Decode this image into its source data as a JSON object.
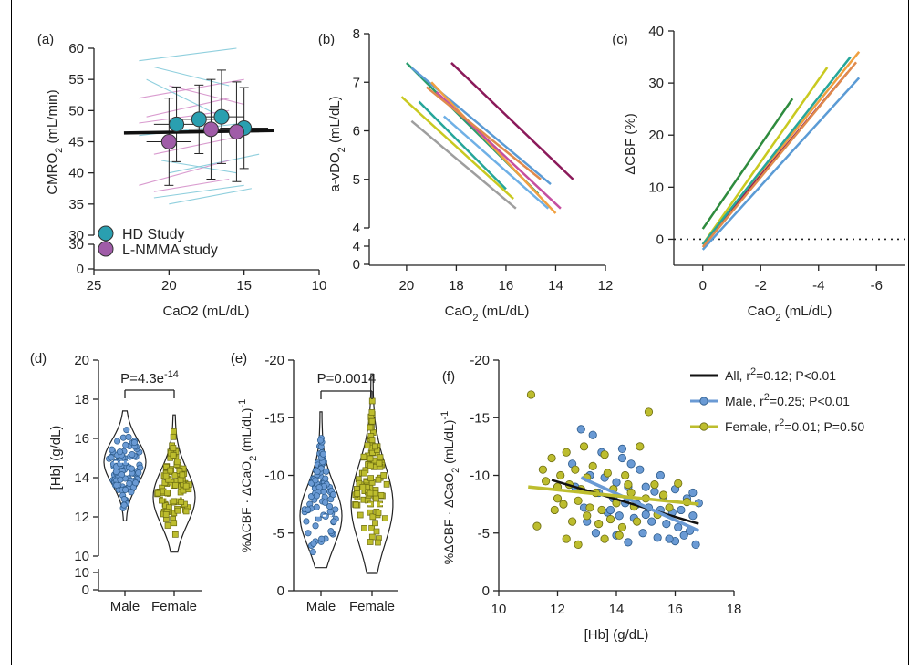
{
  "colors": {
    "hd": "#2a9fb0",
    "lnmma": "#a05ca8",
    "male": "#6a9ad4",
    "female": "#bdbd2e",
    "all": "#111111",
    "panel_b": [
      "#2a9d6e",
      "#8b1a5a",
      "#5b9bd5",
      "#f0a040",
      "#c9c920",
      "#9e9e9e",
      "#c54fa0",
      "#26a69a",
      "#6fb0e6",
      "#e08a4c"
    ],
    "panel_c": [
      "#2e8b3e",
      "#5b9bd5",
      "#f0a040",
      "#c9c920",
      "#8b1a5a",
      "#26a69a",
      "#e08a4c"
    ]
  },
  "chart_data": [
    {
      "panel": "a",
      "type": "scatter",
      "panel_label": "(a)",
      "xlabel": "CaO2 (mL/dL)",
      "ylabel": "CMRO2 (mL/min)",
      "xlim": [
        25,
        10
      ],
      "ylim": [
        0,
        60
      ],
      "axis_break": [
        30,
        30
      ],
      "xticks": [
        "25",
        "20",
        "15",
        "10"
      ],
      "yticks_upper": [
        "30",
        "35",
        "40",
        "45",
        "50",
        "55",
        "60"
      ],
      "yticks_lower": [
        "0",
        "30"
      ],
      "legend": [
        {
          "label": "HD Study",
          "color": "hd"
        },
        {
          "label": "L-NMMA study",
          "color": "lnmma"
        }
      ],
      "series": [
        {
          "name": "HD Study",
          "x": [
            19.5,
            18.0,
            16.5,
            15.0
          ],
          "y": [
            47.8,
            48.6,
            49.0,
            47.2
          ],
          "yerr": [
            6,
            5.5,
            7.5,
            6.5
          ],
          "xerr": [
            1.5,
            1.6,
            1.5,
            1.6
          ]
        },
        {
          "name": "L-NMMA study",
          "x": [
            20.0,
            17.2,
            15.5
          ],
          "y": [
            45.0,
            47.0,
            46.6
          ],
          "yerr": [
            7,
            8,
            8
          ],
          "xerr": [
            1.5,
            1.5,
            1.5
          ]
        }
      ],
      "fit": {
        "x": [
          23,
          13
        ],
        "y": [
          46.4,
          46.8
        ]
      }
    },
    {
      "panel": "b",
      "type": "line",
      "panel_label": "(b)",
      "xlabel": "CaO2 (mL/dL)",
      "ylabel": "a-vDO2 (mL/dL)",
      "xlim": [
        21.5,
        12
      ],
      "ylim": [
        0,
        8
      ],
      "axis_break": [
        4,
        4
      ],
      "xticks": [
        "20",
        "18",
        "16",
        "14",
        "12"
      ],
      "yticks_upper": [
        "4",
        "5",
        "6",
        "7",
        "8"
      ],
      "yticks_lower": [
        "0",
        "4"
      ],
      "lines": [
        {
          "x": [
            20.0,
            14.7
          ],
          "y": [
            7.4,
            4.7
          ]
        },
        {
          "x": [
            18.2,
            13.3
          ],
          "y": [
            7.4,
            5.0
          ]
        },
        {
          "x": [
            19.8,
            14.2
          ],
          "y": [
            7.3,
            4.9
          ]
        },
        {
          "x": [
            19.0,
            14.0
          ],
          "y": [
            7.0,
            4.3
          ]
        },
        {
          "x": [
            20.2,
            15.7
          ],
          "y": [
            6.7,
            4.6
          ]
        },
        {
          "x": [
            19.8,
            15.6
          ],
          "y": [
            6.2,
            4.4
          ]
        },
        {
          "x": [
            18.8,
            13.8
          ],
          "y": [
            6.8,
            4.4
          ]
        },
        {
          "x": [
            19.5,
            16.0
          ],
          "y": [
            6.6,
            4.8
          ]
        },
        {
          "x": [
            18.5,
            14.3
          ],
          "y": [
            6.3,
            4.4
          ]
        },
        {
          "x": [
            19.2,
            14.6
          ],
          "y": [
            6.9,
            5.0
          ]
        }
      ]
    },
    {
      "panel": "c",
      "type": "line",
      "panel_label": "(c)",
      "xlabel": "CaO2 (mL/dL)",
      "ylabel": "ΔCBF (%)",
      "xlim": [
        1,
        -7
      ],
      "ylim": [
        -5,
        40
      ],
      "xticks": [
        "0",
        "-2",
        "-4",
        "-6"
      ],
      "yticks": [
        "0",
        "10",
        "20",
        "30",
        "40"
      ],
      "reference_line_y": 0,
      "lines": [
        {
          "x": [
            0,
            -3.1
          ],
          "y": [
            2,
            27
          ]
        },
        {
          "x": [
            0,
            -5.4
          ],
          "y": [
            -2,
            31
          ]
        },
        {
          "x": [
            0,
            -5.4
          ],
          "y": [
            -1,
            36
          ]
        },
        {
          "x": [
            0,
            -4.3
          ],
          "y": [
            -1,
            33
          ]
        },
        {
          "x": [
            0,
            -5.0
          ],
          "y": [
            -1,
            32
          ]
        },
        {
          "x": [
            0,
            -5.1
          ],
          "y": [
            -1,
            35
          ]
        },
        {
          "x": [
            0,
            -5.3
          ],
          "y": [
            -1.5,
            34
          ]
        }
      ]
    },
    {
      "panel": "d",
      "type": "violin",
      "panel_label": "(d)",
      "ylabel": "[Hb] (g/dL)",
      "categories": [
        "Male",
        "Female"
      ],
      "ylim": [
        0,
        20
      ],
      "axis_break": [
        10,
        10
      ],
      "yticks_upper": [
        "10",
        "12",
        "14",
        "16",
        "18",
        "20"
      ],
      "yticks_lower": [
        "0",
        "10"
      ],
      "annotation": "P=4.3e-14",
      "groups": [
        {
          "name": "Male",
          "median": 14.8,
          "range": [
            11.8,
            17.4
          ]
        },
        {
          "name": "Female",
          "median": 13.0,
          "range": [
            10.2,
            17.2
          ]
        }
      ]
    },
    {
      "panel": "e",
      "type": "violin",
      "panel_label": "(e)",
      "ylabel": "%ΔCBF · ΔCaO2 (mL/dL)-1",
      "categories": [
        "Male",
        "Female"
      ],
      "ylim": [
        0,
        -20
      ],
      "yticks": [
        "0",
        "-5",
        "-10",
        "-15",
        "-20"
      ],
      "annotation": "P=0.0014",
      "groups": [
        {
          "name": "Male",
          "median": -6.5,
          "range": [
            -2.0,
            -15.5
          ]
        },
        {
          "name": "Female",
          "median": -7.5,
          "range": [
            -1.5,
            -18.8
          ]
        }
      ]
    },
    {
      "panel": "f",
      "type": "scatter",
      "panel_label": "(f)",
      "xlabel": "[Hb] (g/dL)",
      "ylabel": "%ΔCBF · ΔCaO2 (mL/dL)-1",
      "xlim": [
        10,
        18
      ],
      "ylim": [
        0,
        -20
      ],
      "xticks": [
        "10",
        "12",
        "14",
        "16",
        "18"
      ],
      "yticks": [
        "0",
        "-5",
        "-10",
        "-15",
        "-20"
      ],
      "legend": [
        {
          "label": "All, r²=0.12; P<0.01",
          "color": "all"
        },
        {
          "label": "Male, r²=0.25; P<0.01",
          "color": "male"
        },
        {
          "label": "Female, r²=0.01; P=0.50",
          "color": "female"
        }
      ],
      "fits": [
        {
          "name": "All",
          "x": [
            11.8,
            16.8
          ],
          "y": [
            -9.6,
            -5.8
          ]
        },
        {
          "name": "Male",
          "x": [
            12.8,
            16.8
          ],
          "y": [
            -9.8,
            -5.2
          ]
        },
        {
          "name": "Female",
          "x": [
            11.0,
            16.8
          ],
          "y": [
            -9.0,
            -7.5
          ]
        }
      ],
      "series": [
        {
          "name": "Male",
          "points": [
            [
              12.8,
              -14
            ],
            [
              13.2,
              -13.5
            ],
            [
              13.5,
              -12
            ],
            [
              14.2,
              -12.3
            ],
            [
              14.5,
              -11
            ],
            [
              14.8,
              -10.5
            ],
            [
              13.1,
              -10
            ],
            [
              13.6,
              -9.8
            ],
            [
              14.0,
              -9.4
            ],
            [
              14.4,
              -9
            ],
            [
              15.0,
              -9
            ],
            [
              15.3,
              -8.6
            ],
            [
              15.6,
              -8.2
            ],
            [
              16.0,
              -8.8
            ],
            [
              16.4,
              -8
            ],
            [
              12.6,
              -9
            ],
            [
              13.4,
              -8.5
            ],
            [
              13.9,
              -8
            ],
            [
              14.3,
              -7.6
            ],
            [
              14.7,
              -7.5
            ],
            [
              15.1,
              -7.2
            ],
            [
              15.5,
              -7
            ],
            [
              15.9,
              -6.8
            ],
            [
              16.2,
              -7
            ],
            [
              16.6,
              -6.5
            ],
            [
              12.9,
              -7.2
            ],
            [
              13.7,
              -6.8
            ],
            [
              14.1,
              -6.5
            ],
            [
              14.6,
              -6.3
            ],
            [
              15.2,
              -6
            ],
            [
              15.7,
              -5.8
            ],
            [
              16.1,
              -5.5
            ],
            [
              16.5,
              -5.2
            ],
            [
              13.3,
              -5
            ],
            [
              14.0,
              -4.8
            ],
            [
              14.9,
              -5
            ],
            [
              15.4,
              -4.6
            ],
            [
              16.0,
              -4.3
            ],
            [
              16.7,
              -4
            ],
            [
              14.4,
              -4.2
            ],
            [
              15.8,
              -4.5
            ],
            [
              16.3,
              -4.8
            ],
            [
              13.8,
              -7
            ],
            [
              15.0,
              -6.6
            ],
            [
              16.6,
              -8.5
            ],
            [
              12.5,
              -11
            ],
            [
              14.2,
              -11.5
            ],
            [
              15.5,
              -10
            ],
            [
              16.8,
              -7.6
            ],
            [
              13.0,
              -6
            ]
          ]
        },
        {
          "name": "Female",
          "points": [
            [
              11.1,
              -17
            ],
            [
              15.1,
              -15.5
            ],
            [
              11.8,
              -11.5
            ],
            [
              12.3,
              -12
            ],
            [
              12.9,
              -12.5
            ],
            [
              13.6,
              -11.8
            ],
            [
              14.8,
              -12.5
            ],
            [
              11.5,
              -10.5
            ],
            [
              12.1,
              -10
            ],
            [
              12.6,
              -10.5
            ],
            [
              13.2,
              -10.8
            ],
            [
              13.7,
              -10.2
            ],
            [
              14.3,
              -10
            ],
            [
              12.0,
              -9
            ],
            [
              12.4,
              -9.2
            ],
            [
              12.8,
              -8.8
            ],
            [
              13.3,
              -8.5
            ],
            [
              13.9,
              -8.8
            ],
            [
              14.5,
              -8.5
            ],
            [
              15.3,
              -9.2
            ],
            [
              16.1,
              -9.3
            ],
            [
              11.3,
              -5.6
            ],
            [
              11.9,
              -7
            ],
            [
              12.2,
              -7.5
            ],
            [
              12.7,
              -7.8
            ],
            [
              13.1,
              -7.2
            ],
            [
              13.5,
              -7
            ],
            [
              14.0,
              -7.6
            ],
            [
              14.6,
              -7.3
            ],
            [
              15.0,
              -8
            ],
            [
              15.6,
              -8.3
            ],
            [
              16.4,
              -7.7
            ],
            [
              12.5,
              -6
            ],
            [
              13.0,
              -6.5
            ],
            [
              13.4,
              -5.8
            ],
            [
              13.8,
              -6.2
            ],
            [
              14.2,
              -5.5
            ],
            [
              14.7,
              -6
            ],
            [
              15.4,
              -6.6
            ],
            [
              12.3,
              -4.5
            ],
            [
              12.7,
              -4
            ],
            [
              13.6,
              -4.5
            ],
            [
              14.1,
              -4.8
            ],
            [
              11.6,
              -9.5
            ],
            [
              13.0,
              -9.8
            ],
            [
              14.4,
              -9.2
            ],
            [
              12.0,
              -8
            ],
            [
              15.8,
              -7.2
            ]
          ]
        }
      ]
    }
  ]
}
